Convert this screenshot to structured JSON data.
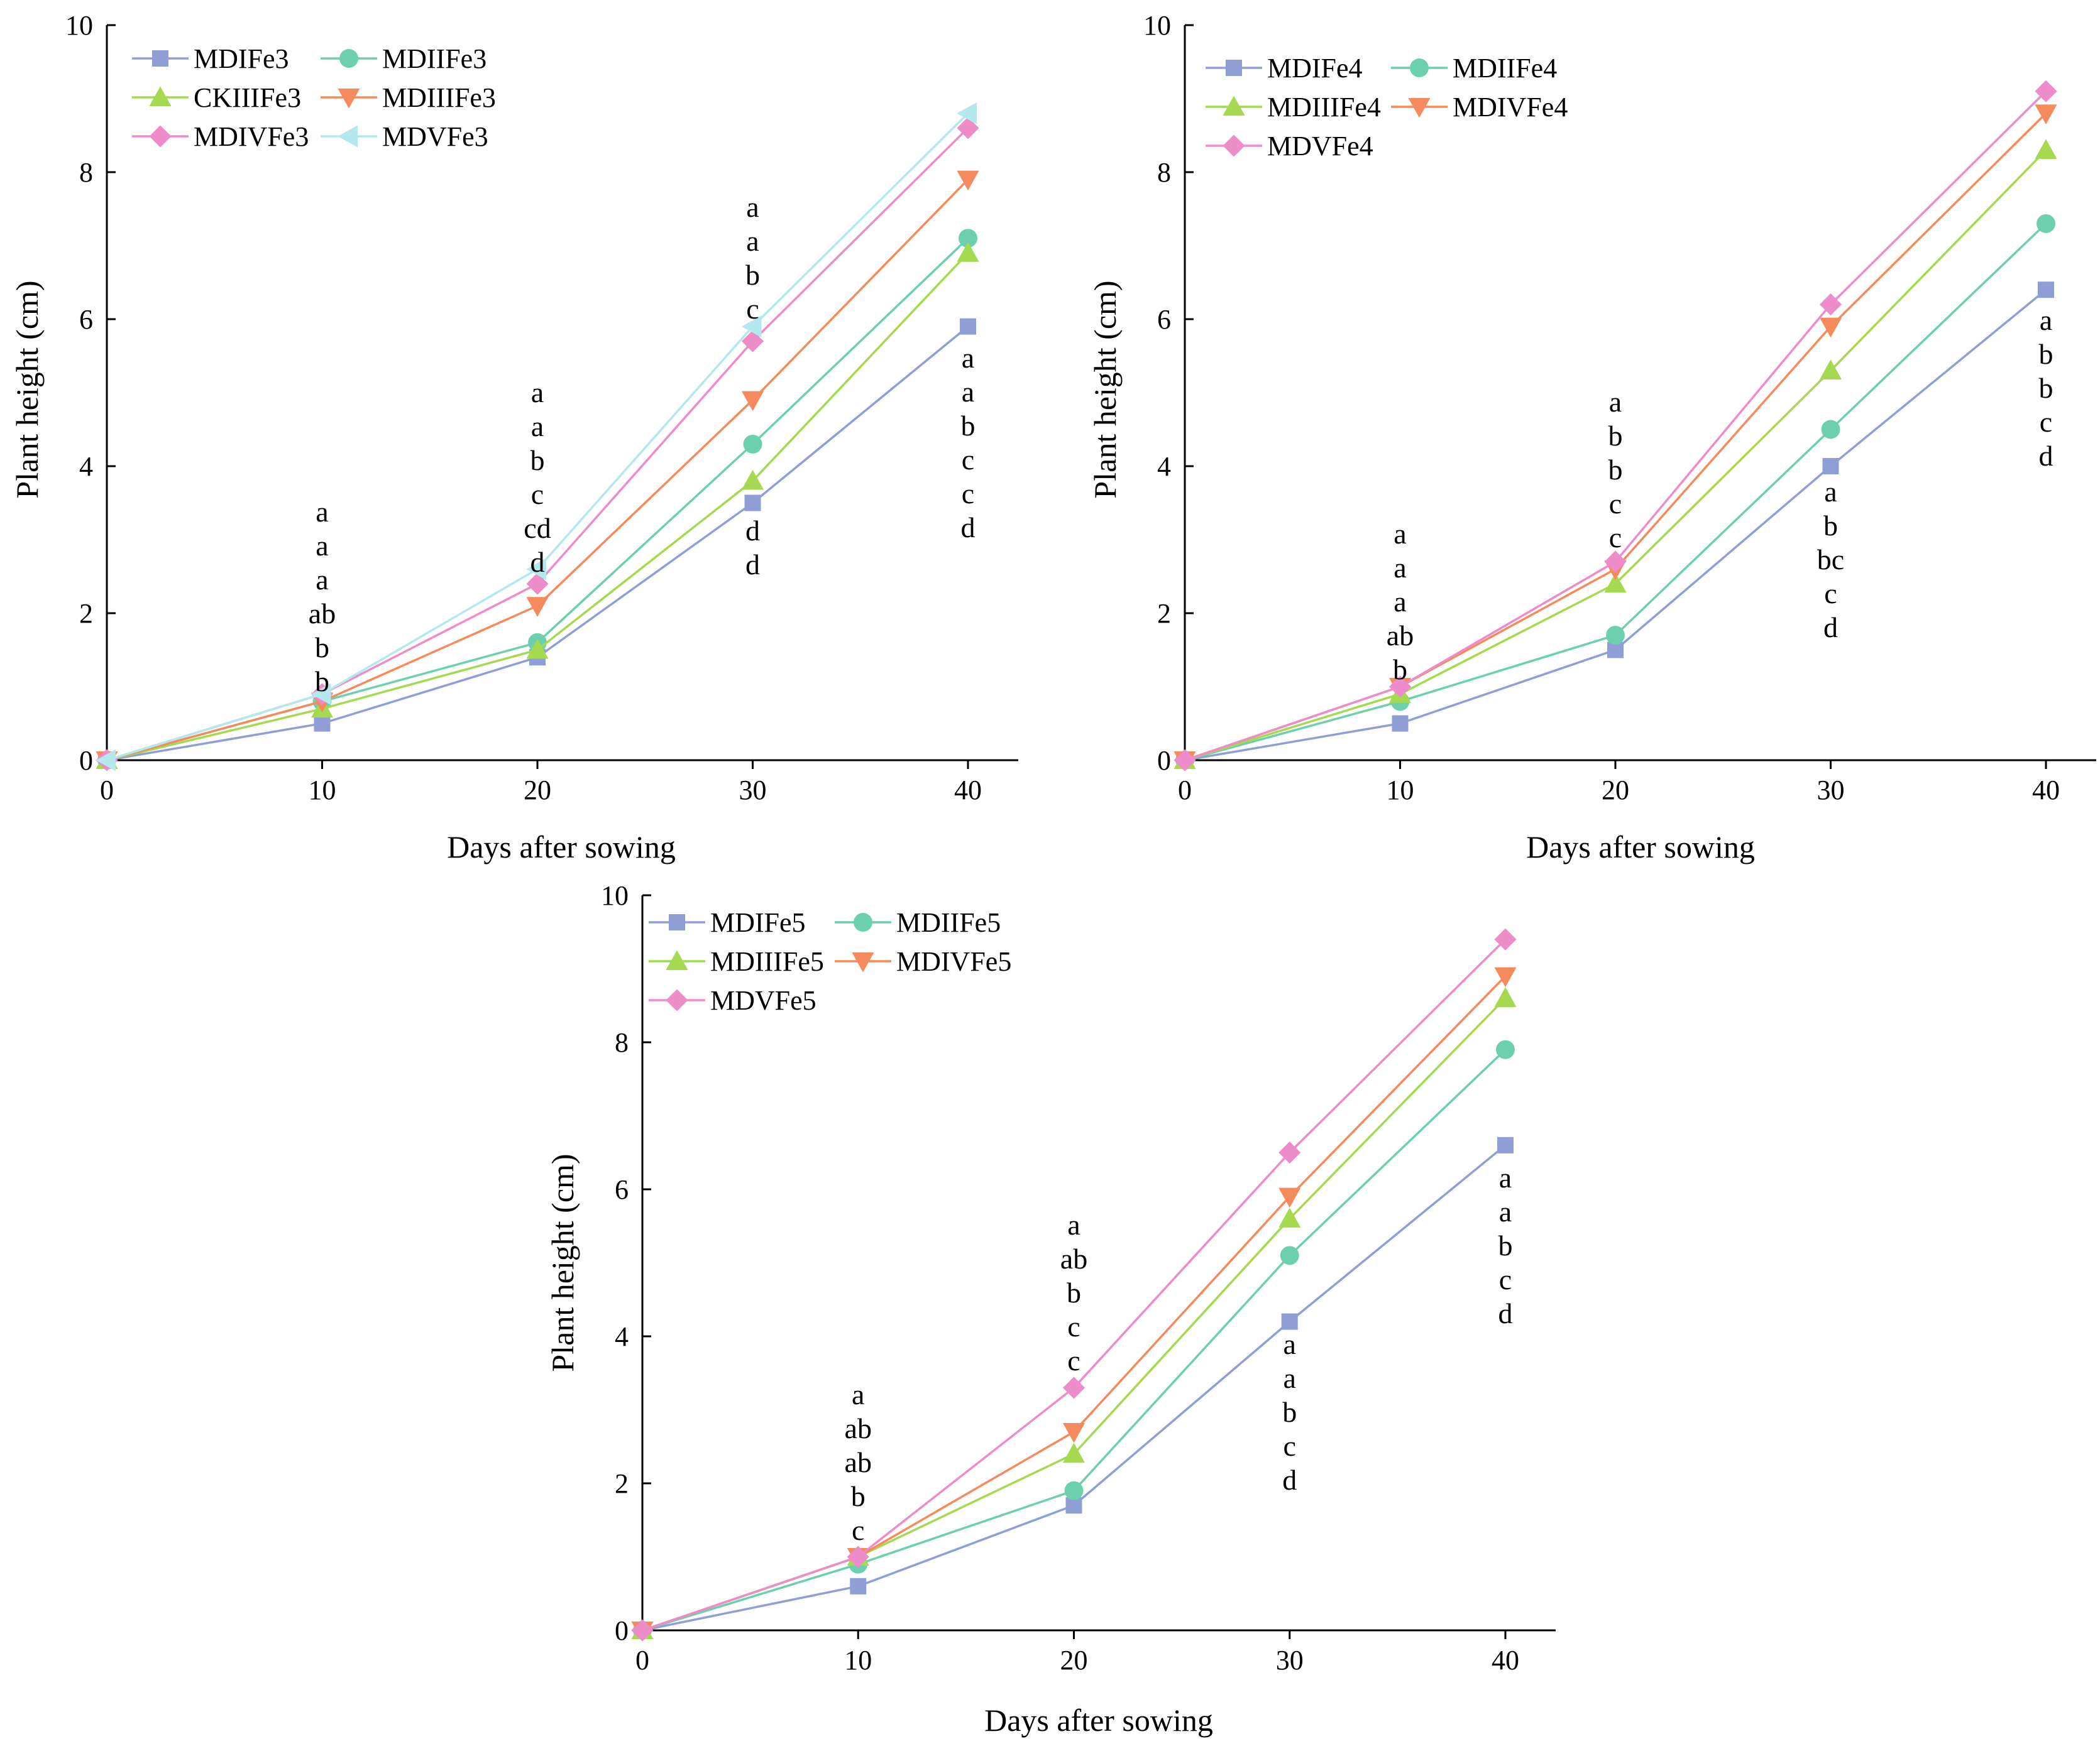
{
  "chart_data": [
    {
      "type": "line",
      "xlabel": "Days after sowing",
      "ylabel": "Plant height (cm)",
      "x": [
        0,
        10,
        20,
        30,
        40
      ],
      "xticks": [
        "0",
        "10",
        "20",
        "30",
        "40"
      ],
      "yticks": [
        "0",
        "2",
        "4",
        "6",
        "8",
        "10"
      ],
      "xlim": [
        0,
        40
      ],
      "ylim": [
        0,
        10
      ],
      "legend_position": "top-left",
      "series": [
        {
          "name": "MDIFe3",
          "marker": "square",
          "color": "#8f9fd6",
          "values": [
            0,
            0.5,
            1.4,
            3.5,
            5.9
          ]
        },
        {
          "name": "MDIIFe3",
          "marker": "circle",
          "color": "#6ccfad",
          "values": [
            0,
            0.8,
            1.6,
            4.3,
            7.1
          ]
        },
        {
          "name": "CKIIIFe3",
          "marker": "triangle-up",
          "color": "#a5d94f",
          "values": [
            0,
            0.7,
            1.5,
            3.8,
            6.9
          ]
        },
        {
          "name": "MDIIIFe3",
          "marker": "triangle-down",
          "color": "#f58a5c",
          "values": [
            0,
            0.8,
            2.1,
            4.9,
            7.9
          ]
        },
        {
          "name": "MDIVFe3",
          "marker": "diamond",
          "color": "#ee8bc9",
          "values": [
            0,
            0.9,
            2.4,
            5.7,
            8.6
          ]
        },
        {
          "name": "MDVFe3",
          "marker": "triangle-left",
          "color": "#b3e8ec",
          "values": [
            0,
            0.9,
            2.6,
            5.9,
            8.8
          ]
        }
      ],
      "annotations": [
        {
          "x": 10,
          "lines": [
            "a",
            "a",
            "a",
            "ab",
            "b",
            "b"
          ]
        },
        {
          "x": 20,
          "lines": [
            "a",
            "a",
            "b",
            "c",
            "cd",
            "d"
          ]
        },
        {
          "x": 30,
          "lines": [
            "a",
            "a",
            "b",
            "c"
          ]
        },
        {
          "x": 30,
          "lines": [
            "d",
            "d"
          ]
        },
        {
          "x": 40,
          "lines": [
            "a",
            "a",
            "b",
            "c",
            "c",
            "d"
          ]
        }
      ]
    },
    {
      "type": "line",
      "xlabel": "Days after sowing",
      "ylabel": "Plant height (cm)",
      "x": [
        0,
        10,
        20,
        30,
        40
      ],
      "xticks": [
        "0",
        "10",
        "20",
        "30",
        "40"
      ],
      "yticks": [
        "0",
        "2",
        "4",
        "6",
        "8",
        "10"
      ],
      "xlim": [
        0,
        40
      ],
      "ylim": [
        0,
        10
      ],
      "legend_position": "top-left",
      "series": [
        {
          "name": "MDIFe4",
          "marker": "square",
          "color": "#8f9fd6",
          "values": [
            0,
            0.5,
            1.5,
            4.0,
            6.4
          ]
        },
        {
          "name": "MDIIFe4",
          "marker": "circle",
          "color": "#6ccfad",
          "values": [
            0,
            0.8,
            1.7,
            4.5,
            7.3
          ]
        },
        {
          "name": "MDIIIFe4",
          "marker": "triangle-up",
          "color": "#a5d94f",
          "values": [
            0,
            0.9,
            2.4,
            5.3,
            8.3
          ]
        },
        {
          "name": "MDIVFe4",
          "marker": "triangle-down",
          "color": "#f58a5c",
          "values": [
            0,
            1.0,
            2.6,
            5.9,
            8.8
          ]
        },
        {
          "name": "MDVFe4",
          "marker": "diamond",
          "color": "#ee8bc9",
          "values": [
            0,
            1.0,
            2.7,
            6.2,
            9.1
          ]
        }
      ],
      "annotations": [
        {
          "x": 10,
          "lines": [
            "a",
            "a",
            "a",
            "ab",
            "b"
          ]
        },
        {
          "x": 20,
          "lines": [
            "a",
            "b",
            "b",
            "c",
            "c"
          ]
        },
        {
          "x": 30,
          "lines": [
            "a",
            "b",
            "bc",
            "c",
            "d"
          ]
        },
        {
          "x": 40,
          "lines": [
            "a",
            "b",
            "b",
            "c",
            "d"
          ]
        }
      ]
    },
    {
      "type": "line",
      "xlabel": "Days after sowing",
      "ylabel": "Plant height (cm)",
      "x": [
        0,
        10,
        20,
        30,
        40
      ],
      "xticks": [
        "0",
        "10",
        "20",
        "30",
        "40"
      ],
      "yticks": [
        "0",
        "2",
        "4",
        "6",
        "8",
        "10"
      ],
      "xlim": [
        0,
        40
      ],
      "ylim": [
        0,
        10
      ],
      "legend_position": "top-left",
      "series": [
        {
          "name": "MDIFe5",
          "marker": "square",
          "color": "#8f9fd6",
          "values": [
            0,
            0.6,
            1.7,
            4.2,
            6.6
          ]
        },
        {
          "name": "MDIIFe5",
          "marker": "circle",
          "color": "#6ccfad",
          "values": [
            0,
            0.9,
            1.9,
            5.1,
            7.9
          ]
        },
        {
          "name": "MDIIIFe5",
          "marker": "triangle-up",
          "color": "#a5d94f",
          "values": [
            0,
            1.0,
            2.4,
            5.6,
            8.6
          ]
        },
        {
          "name": "MDIVFe5",
          "marker": "triangle-down",
          "color": "#f58a5c",
          "values": [
            0,
            1.0,
            2.7,
            5.9,
            8.9
          ]
        },
        {
          "name": "MDVFe5",
          "marker": "diamond",
          "color": "#ee8bc9",
          "values": [
            0,
            1.0,
            3.3,
            6.5,
            9.4
          ]
        }
      ],
      "annotations": [
        {
          "x": 10,
          "lines": [
            "a",
            "ab",
            "ab",
            "b",
            "c"
          ]
        },
        {
          "x": 20,
          "lines": [
            "a",
            "ab",
            "b",
            "c",
            "c"
          ]
        },
        {
          "x": 30,
          "lines": [
            "a",
            "a",
            "b",
            "c",
            "d"
          ]
        },
        {
          "x": 40,
          "lines": [
            "a",
            "a",
            "b",
            "c",
            "d"
          ]
        }
      ]
    }
  ]
}
